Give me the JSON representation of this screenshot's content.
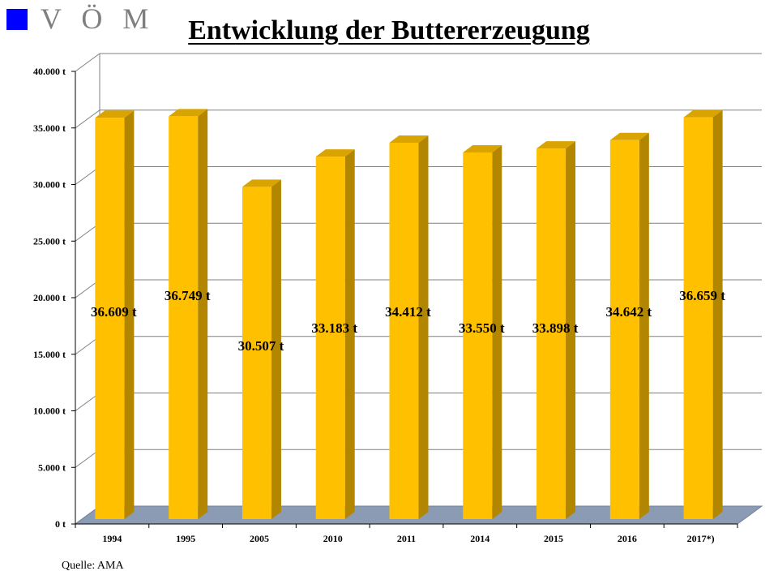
{
  "logo": {
    "text": "V Ö M"
  },
  "title": "Entwicklung der Buttererzeugung",
  "source": "Quelle: AMA",
  "colors": {
    "bar_front": "#ffc000",
    "bar_side": "#b38600",
    "bar_top": "#d9a300",
    "floor": "#8c9bb4",
    "logo_square": "#0000ff",
    "logo_text": "#7f7f7f"
  },
  "chart_data": {
    "type": "bar",
    "title": "Entwicklung der Buttererzeugung",
    "categories": [
      "1994",
      "1995",
      "2005",
      "2010",
      "2011",
      "2014",
      "2015",
      "2016",
      "2017*)"
    ],
    "values": [
      36609,
      36749,
      30507,
      33183,
      34412,
      33550,
      33898,
      34642,
      36659
    ],
    "value_labels": [
      "36.609 t",
      "36.749 t",
      "30.507 t",
      "33.183 t",
      "34.412 t",
      "33.550 t",
      "33.898 t",
      "34.642 t",
      "36.659 t"
    ],
    "yticks": [
      0,
      5000,
      10000,
      15000,
      20000,
      25000,
      30000,
      35000,
      40000
    ],
    "ytick_labels": [
      "0 t",
      "5.000 t",
      "10.000 t",
      "15.000 t",
      "20.000 t",
      "25.000 t",
      "30.000 t",
      "35.000 t",
      "40.000 t"
    ],
    "ylim": [
      0,
      40000
    ],
    "xlabel": "",
    "ylabel": "",
    "grid": true,
    "legend": "none",
    "style": "3d"
  }
}
